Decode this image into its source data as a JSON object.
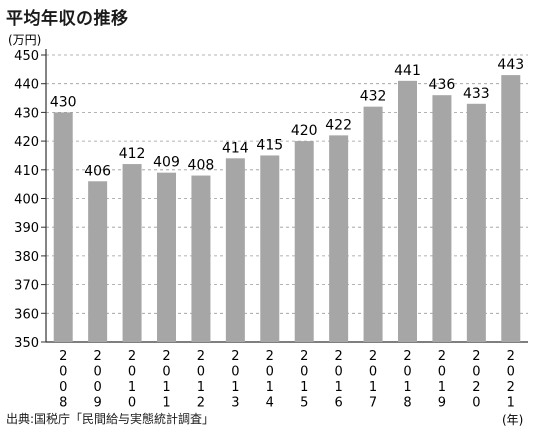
{
  "title": "平均年収の推移",
  "source": "出典:国税庁「民間給与実態統計調査」",
  "chart_data": {
    "type": "bar",
    "y_unit_label": "(万円)",
    "x_unit_label": "(年)",
    "categories": [
      "2008",
      "2009",
      "2010",
      "2011",
      "2012",
      "2013",
      "2014",
      "2015",
      "2016",
      "2017",
      "2018",
      "2019",
      "2020",
      "2021"
    ],
    "values": [
      430,
      406,
      412,
      409,
      408,
      414,
      415,
      420,
      422,
      432,
      441,
      436,
      433,
      443
    ],
    "ylim": [
      350,
      450
    ],
    "yticks": [
      350,
      360,
      370,
      380,
      390,
      400,
      410,
      420,
      430,
      440,
      450
    ],
    "grid": "horizontal-dashed",
    "bar_color": "#a6a6a6",
    "data_labels": true
  }
}
